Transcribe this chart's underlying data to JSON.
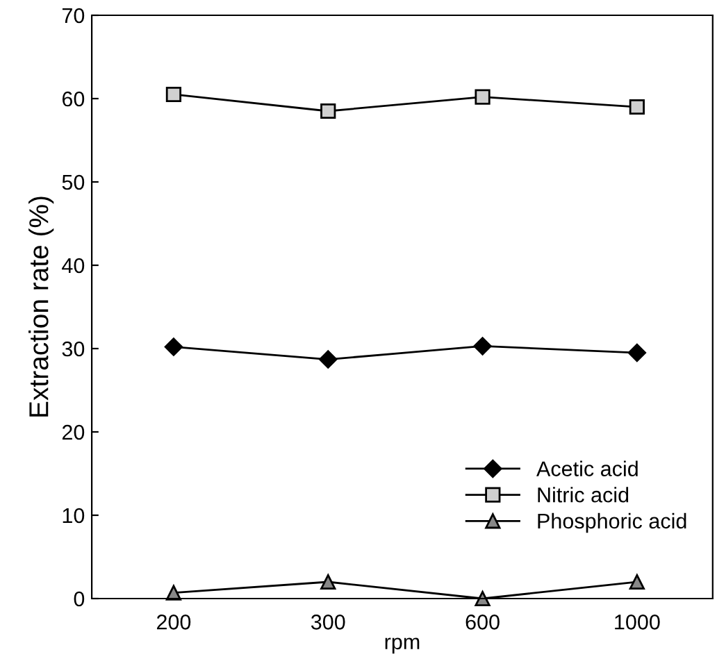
{
  "chart_data": {
    "type": "line",
    "xlabel": "rpm",
    "ylabel": "Extraction rate (%)",
    "categories": [
      "200",
      "300",
      "600",
      "1000"
    ],
    "series": [
      {
        "name": "Acetic acid",
        "color": "#000000",
        "marker": "diamond",
        "values": [
          30.2,
          28.7,
          30.3,
          29.5
        ]
      },
      {
        "name": "Nitric acid",
        "color": "#000000",
        "marker": "square",
        "values": [
          60.5,
          58.5,
          60.2,
          59.0
        ]
      },
      {
        "name": "Phosphoric acid",
        "color": "#000000",
        "marker": "triangle",
        "values": [
          0.7,
          2.0,
          0,
          2.0
        ]
      }
    ],
    "ylim": [
      0,
      70
    ],
    "yticks": [
      0,
      10,
      20,
      30,
      40,
      50,
      60,
      70
    ],
    "grid": false,
    "legend": "bottom right",
    "line_style": "solid"
  }
}
